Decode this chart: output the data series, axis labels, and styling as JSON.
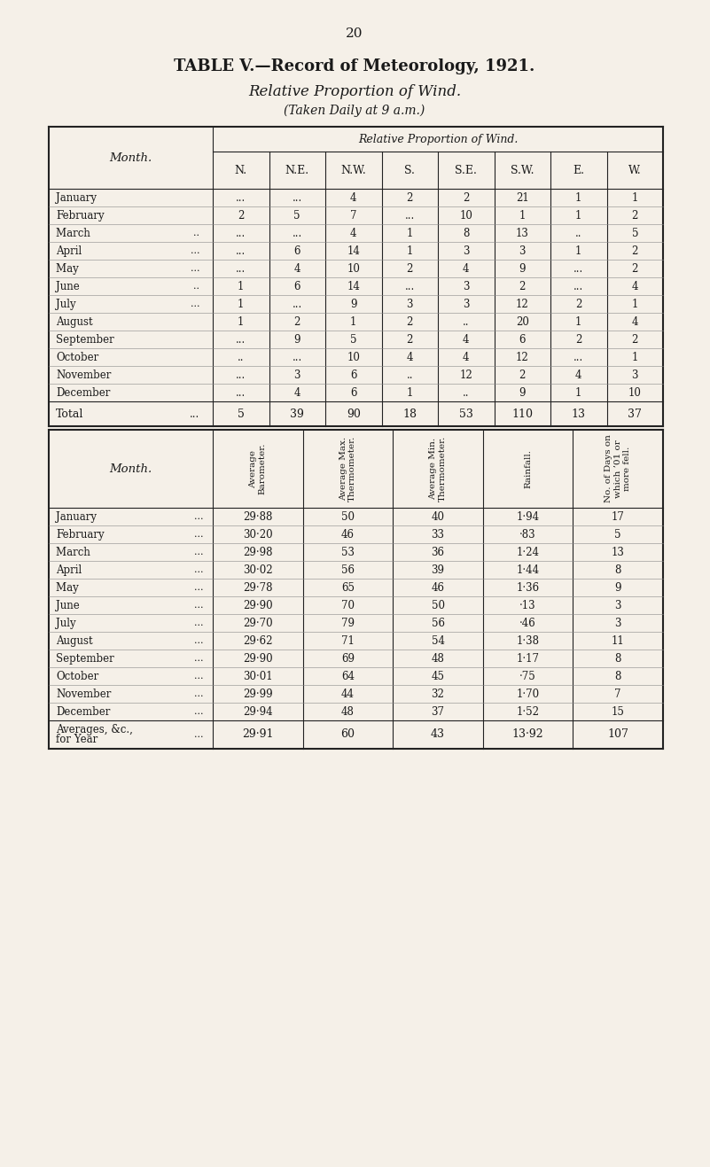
{
  "page_number": "20",
  "title_line1": "TABLE V.—Record of Meteorology, 1921.",
  "title_line2": "Relative Proportion of Wind.",
  "title_line3": "(Taken Daily at 9 a.m.)",
  "bg_color": "#f5f0e8",
  "table1_header_main": "Relative Proportion of Wind.",
  "table1_col_headers": [
    "N.",
    "N.E.",
    "N.W.",
    "S.",
    "S.E.",
    "S.W.",
    "E.",
    "W."
  ],
  "table1_months": [
    "January",
    "February",
    "March ..",
    "April ...",
    "May ...",
    "June ..",
    "July ...",
    "August",
    "September",
    "October",
    "November",
    "December"
  ],
  "table1_month_dots": [
    "...",
    "..",
    "...",
    "...",
    "...",
    "...",
    "...",
    "...",
    "...",
    "...",
    "...",
    ".."
  ],
  "table1_data": [
    [
      "...",
      "...",
      "4",
      "2",
      "2",
      "21",
      "1",
      "1"
    ],
    [
      "2",
      "5",
      "7",
      "...",
      "10",
      "1",
      "1",
      "2"
    ],
    [
      "...",
      "...",
      "4",
      "1",
      "8",
      "13",
      "..",
      "5"
    ],
    [
      "...",
      "6",
      "14",
      "1",
      "3",
      "3",
      "1",
      "2"
    ],
    [
      "...",
      "4",
      "10",
      "2",
      "4",
      "9",
      "...",
      "2"
    ],
    [
      "1",
      "6",
      "14",
      "...",
      "3",
      "2",
      "...",
      "4"
    ],
    [
      "1",
      "...",
      "9",
      "3",
      "3",
      "12",
      "2",
      "1"
    ],
    [
      "1",
      "2",
      "1",
      "2",
      "..",
      "20",
      "1",
      "4"
    ],
    [
      "...",
      "9",
      "5",
      "2",
      "4",
      "6",
      "2",
      "2"
    ],
    [
      "..",
      "...",
      "10",
      "4",
      "4",
      "12",
      "...",
      "1"
    ],
    [
      "...",
      "3",
      "6",
      "..",
      "12",
      "2",
      "4",
      "3"
    ],
    [
      "...",
      "4",
      "6",
      "1",
      "..",
      "9",
      "1",
      "10"
    ]
  ],
  "table1_totals": [
    "5",
    "39",
    "90",
    "18",
    "53",
    "110",
    "13",
    "37"
  ],
  "table2_col_headers": [
    "Average\nBarometer.",
    "Average Max.\nThermometer.",
    "Average Min.\nThermometer.",
    "Rainfall.",
    "No. of Days on\nwhich ’01 or\nmore fell."
  ],
  "table2_months": [
    "January",
    "February",
    "March ...",
    "April ...",
    "May ...",
    "June ...",
    "July ...",
    "August",
    "September",
    "October",
    "November",
    "December"
  ],
  "table2_month_dots": [
    "...",
    "...",
    "...",
    "...",
    "...",
    "...",
    "...",
    "...",
    "..",
    "...",
    "...",
    ".."
  ],
  "table2_data": [
    [
      "29·88",
      "50",
      "40",
      "1·94",
      "17"
    ],
    [
      "30·20",
      "46",
      "33",
      "·83",
      "5"
    ],
    [
      "29·98",
      "53",
      "36",
      "1·24",
      "13"
    ],
    [
      "30·02",
      "56",
      "39",
      "1·44",
      "8"
    ],
    [
      "29·78",
      "65",
      "46",
      "1·36",
      "9"
    ],
    [
      "29·90",
      "70",
      "50",
      "·13",
      "3"
    ],
    [
      "29·70",
      "79",
      "56",
      "·46",
      "3"
    ],
    [
      "29·62",
      "71",
      "54",
      "1·38",
      "11"
    ],
    [
      "29·90",
      "69",
      "48",
      "1·17",
      "8"
    ],
    [
      "30·01",
      "64",
      "45",
      "·75",
      "8"
    ],
    [
      "29·99",
      "44",
      "32",
      "1·70",
      "7"
    ],
    [
      "29·94",
      "48",
      "37",
      "1·52",
      "15"
    ]
  ],
  "table2_avg_label": "Averages, &c.,\nfor Year",
  "table2_avg_dots": "...",
  "table2_averages": [
    "29·91",
    "60",
    "43",
    "13·92",
    "107"
  ]
}
